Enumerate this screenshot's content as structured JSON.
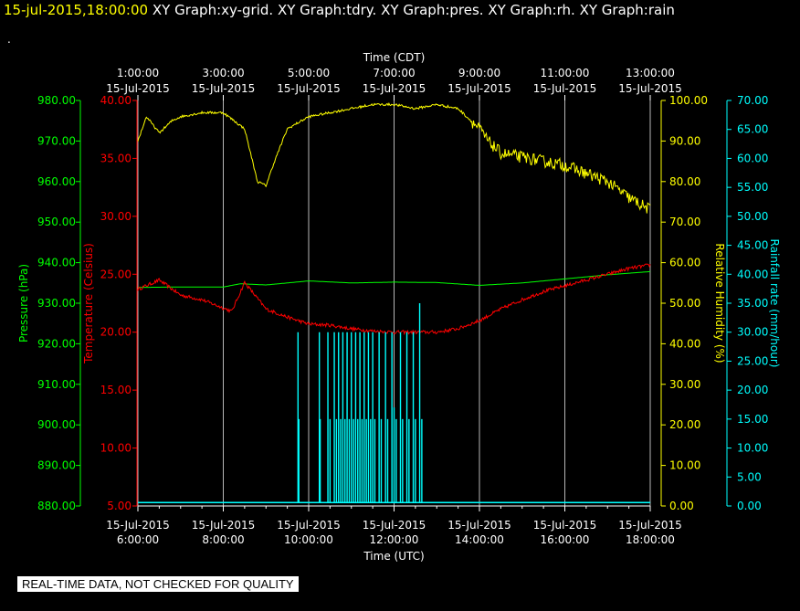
{
  "header": {
    "timestamp": "15-jul-2015,18:00:00",
    "graph_tabs": [
      "XY Graph:xy-grid.",
      "XY Graph:tdry.",
      "XY Graph:pres.",
      "XY Graph:rh.",
      "XY Graph:rain"
    ],
    "dot": "."
  },
  "notice": "REAL-TIME DATA, NOT CHECKED FOR QUALITY",
  "colors": {
    "pressure": "#00ff00",
    "temperature": "#ff0000",
    "humidity": "#ffff00",
    "rain": "#00ffff",
    "grid": "#ffffff"
  },
  "chart_data": {
    "type": "line",
    "top_axis": {
      "title": "Time (CDT)",
      "ticks": [
        {
          "time": "1:00:00",
          "date": "15-Jul-2015"
        },
        {
          "time": "3:00:00",
          "date": "15-Jul-2015"
        },
        {
          "time": "5:00:00",
          "date": "15-Jul-2015"
        },
        {
          "time": "7:00:00",
          "date": "15-Jul-2015"
        },
        {
          "time": "9:00:00",
          "date": "15-Jul-2015"
        },
        {
          "time": "11:00:00",
          "date": "15-Jul-2015"
        },
        {
          "time": "13:00:00",
          "date": "15-Jul-2015"
        }
      ]
    },
    "bottom_axis": {
      "title": "Time (UTC)",
      "ticks": [
        {
          "date": "15-Jul-2015",
          "time": "6:00:00"
        },
        {
          "date": "15-Jul-2015",
          "time": "8:00:00"
        },
        {
          "date": "15-Jul-2015",
          "time": "10:00:00"
        },
        {
          "date": "15-Jul-2015",
          "time": "12:00:00"
        },
        {
          "date": "15-Jul-2015",
          "time": "14:00:00"
        },
        {
          "date": "15-Jul-2015",
          "time": "16:00:00"
        },
        {
          "date": "15-Jul-2015",
          "time": "18:00:00"
        }
      ]
    },
    "xlim_utc_hours": [
      6,
      18
    ],
    "axes": {
      "pressure": {
        "label": "Pressure (hPa)",
        "range": [
          880,
          980
        ],
        "ticks": [
          "880.00",
          "890.00",
          "900.00",
          "910.00",
          "920.00",
          "930.00",
          "940.00",
          "950.00",
          "960.00",
          "970.00",
          "980.00"
        ]
      },
      "temperature": {
        "label": "Temperature (Celsius)",
        "range": [
          5,
          40
        ],
        "ticks": [
          "5.00",
          "10.00",
          "15.00",
          "20.00",
          "25.00",
          "30.00",
          "35.00",
          "40.00"
        ]
      },
      "humidity": {
        "label": "Relative Humidity (%)",
        "range": [
          0,
          100
        ],
        "ticks": [
          "0.00",
          "10.00",
          "20.00",
          "30.00",
          "40.00",
          "50.00",
          "60.00",
          "70.00",
          "80.00",
          "90.00",
          "100.00"
        ]
      },
      "rain": {
        "label": "Rainfall rate (mm/hour)",
        "range": [
          0,
          70
        ],
        "ticks": [
          "0.00",
          "5.00",
          "10.00",
          "15.00",
          "20.00",
          "25.00",
          "30.00",
          "35.00",
          "40.00",
          "45.00",
          "50.00",
          "55.00",
          "60.00",
          "65.00",
          "70.00"
        ]
      }
    },
    "series": [
      {
        "name": "Pressure",
        "axis": "pressure",
        "x": [
          6.0,
          7.0,
          8.0,
          8.4,
          9.0,
          10.0,
          11.0,
          12.0,
          13.0,
          14.0,
          15.0,
          16.0,
          17.0,
          18.0
        ],
        "y": [
          933.9,
          934.0,
          934.0,
          934.8,
          934.5,
          935.5,
          935.0,
          935.2,
          935.1,
          934.4,
          935.0,
          936.0,
          937.0,
          937.8
        ]
      },
      {
        "name": "Temperature",
        "axis": "temperature",
        "x": [
          6.0,
          6.5,
          7.0,
          7.5,
          8.2,
          8.5,
          9.0,
          9.5,
          10.0,
          10.5,
          11.0,
          11.5,
          12.0,
          12.5,
          13.0,
          13.5,
          14.0,
          14.5,
          15.0,
          15.5,
          16.0,
          16.5,
          17.0,
          17.5,
          18.0
        ],
        "y": [
          23.7,
          24.5,
          23.2,
          22.8,
          21.8,
          24.3,
          22.0,
          21.3,
          20.7,
          20.6,
          20.3,
          20.1,
          20.0,
          20.0,
          20.0,
          20.3,
          21.0,
          22.0,
          22.8,
          23.5,
          24.0,
          24.5,
          25.0,
          25.5,
          25.8
        ],
        "noise": 0.15
      },
      {
        "name": "Relative Humidity",
        "axis": "humidity",
        "x": [
          6.0,
          6.2,
          6.5,
          6.8,
          7.0,
          7.5,
          8.0,
          8.5,
          8.8,
          9.0,
          9.2,
          9.5,
          10.0,
          10.5,
          11.0,
          11.5,
          12.0,
          12.5,
          13.0,
          13.5,
          14.0,
          14.2,
          14.5,
          15.0,
          15.5,
          16.0,
          16.5,
          17.0,
          17.5,
          18.0
        ],
        "y": [
          90,
          96,
          92,
          95,
          96,
          97,
          97,
          93,
          80,
          79,
          85,
          93,
          96,
          97,
          98,
          99,
          99,
          98,
          99,
          98,
          93,
          90,
          87,
          86,
          85,
          84,
          82,
          80,
          76,
          73
        ],
        "noise": [
          [
            6,
            13.8,
            0.3
          ],
          [
            13.8,
            18,
            1.5
          ]
        ]
      },
      {
        "name": "Rainfall rate",
        "axis": "rain",
        "baseline": 0.6,
        "spikes": [
          [
            9.75,
            30
          ],
          [
            9.77,
            15
          ],
          [
            10.25,
            30
          ],
          [
            10.27,
            15
          ],
          [
            10.45,
            30
          ],
          [
            10.5,
            15
          ],
          [
            10.6,
            30
          ],
          [
            10.65,
            15
          ],
          [
            10.7,
            30
          ],
          [
            10.75,
            15
          ],
          [
            10.8,
            30
          ],
          [
            10.85,
            15
          ],
          [
            10.9,
            30
          ],
          [
            10.95,
            15
          ],
          [
            11.0,
            30
          ],
          [
            11.05,
            15
          ],
          [
            11.1,
            30
          ],
          [
            11.15,
            15
          ],
          [
            11.2,
            30
          ],
          [
            11.25,
            15
          ],
          [
            11.3,
            30
          ],
          [
            11.35,
            15
          ],
          [
            11.4,
            30
          ],
          [
            11.45,
            15
          ],
          [
            11.5,
            30
          ],
          [
            11.55,
            15
          ],
          [
            11.65,
            30
          ],
          [
            11.7,
            15
          ],
          [
            11.8,
            30
          ],
          [
            11.85,
            15
          ],
          [
            11.95,
            30
          ],
          [
            12.0,
            17
          ],
          [
            12.05,
            15
          ],
          [
            12.15,
            30
          ],
          [
            12.2,
            15
          ],
          [
            12.3,
            30
          ],
          [
            12.35,
            15
          ],
          [
            12.45,
            30
          ],
          [
            12.5,
            15
          ],
          [
            12.6,
            35
          ],
          [
            12.65,
            15
          ]
        ]
      }
    ],
    "grid": true
  }
}
